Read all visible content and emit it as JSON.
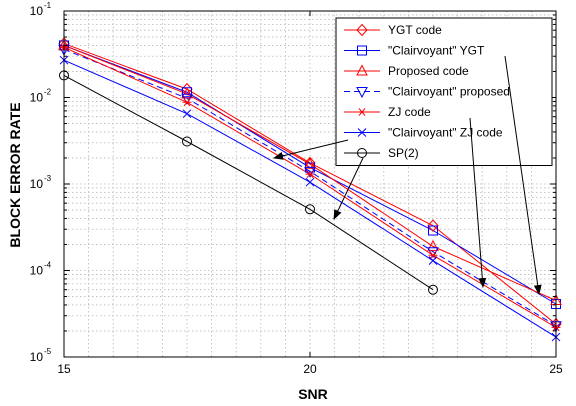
{
  "chart_data": {
    "type": "line",
    "xlabel": "SNR",
    "ylabel": "BLOCK ERROR RATE",
    "xlim": [
      15,
      25
    ],
    "ylim": [
      1e-05,
      0.1
    ],
    "yscale": "log",
    "grid": true,
    "legend_position": "top-right",
    "x_ticks": [
      15,
      20,
      25
    ],
    "y_ticks": [
      {
        "mantissa": "10",
        "exponent": "-5",
        "value": 1e-05
      },
      {
        "mantissa": "10",
        "exponent": "-4",
        "value": 0.0001
      },
      {
        "mantissa": "10",
        "exponent": "-3",
        "value": 0.001
      },
      {
        "mantissa": "10",
        "exponent": "-2",
        "value": 0.01
      },
      {
        "mantissa": "10",
        "exponent": "-1",
        "value": 0.1
      }
    ],
    "series": [
      {
        "name": "YGT code",
        "color": "#ff0000",
        "dash": "solid",
        "marker": "diamond",
        "x": [
          15,
          17.5,
          20,
          22.5,
          25
        ],
        "y": [
          0.042,
          0.0125,
          0.00175,
          0.00033,
          2.4e-05
        ]
      },
      {
        "name": "\"Clairvoyant\" YGT",
        "color": "#0000ff",
        "dash": "solid",
        "marker": "square",
        "x": [
          15,
          17.5,
          20,
          22.5,
          25
        ],
        "y": [
          0.04,
          0.0115,
          0.00155,
          0.00029,
          4.1e-05
        ]
      },
      {
        "name": "Proposed code",
        "color": "#ff0000",
        "dash": "solid",
        "marker": "triangle-up",
        "x": [
          15,
          17.5,
          20,
          22.5,
          25
        ],
        "y": [
          0.04,
          0.011,
          0.0017,
          0.00019,
          4.5e-05
        ]
      },
      {
        "name": "\"Clairvoyant\" proposed",
        "color": "#0000ff",
        "dash": "dashed",
        "marker": "triangle-down",
        "x": [
          15,
          17.5,
          20,
          22.5,
          25
        ],
        "y": [
          0.036,
          0.0098,
          0.0014,
          0.000165,
          2.3e-05
        ]
      },
      {
        "name": "ZJ code",
        "color": "#ff0000",
        "dash": "solid",
        "marker": "asterisk",
        "x": [
          15,
          17.5,
          20,
          22.5,
          25
        ],
        "y": [
          0.038,
          0.0088,
          0.0013,
          0.00015,
          2.2e-05
        ]
      },
      {
        "name": "\"Clairvoyant\" ZJ code",
        "color": "#0000ff",
        "dash": "solid",
        "marker": "x",
        "x": [
          15,
          17.5,
          20,
          22.5,
          25
        ],
        "y": [
          0.027,
          0.0065,
          0.00105,
          0.00013,
          1.7e-05
        ]
      },
      {
        "name": "SP(2)",
        "color": "#000000",
        "dash": "solid",
        "marker": "circle",
        "x": [
          15,
          17.5,
          20,
          22.5
        ],
        "y": [
          0.018,
          0.0031,
          0.00051,
          6e-05
        ]
      }
    ]
  }
}
